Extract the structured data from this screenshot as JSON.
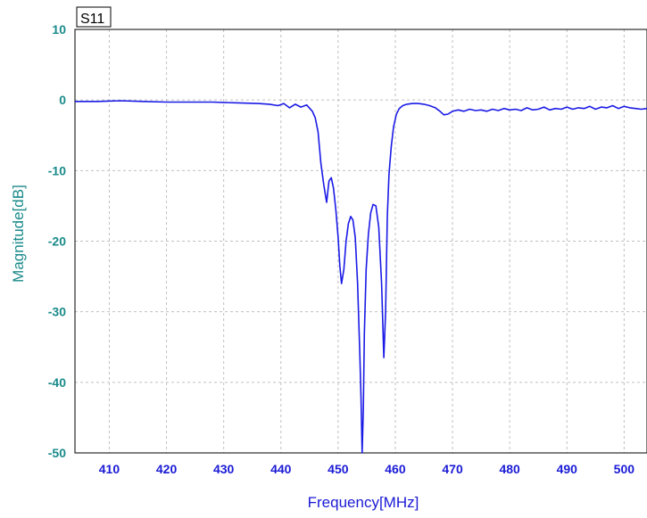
{
  "chart_data": {
    "type": "line",
    "legend": "S11",
    "xlabel": "Frequency[MHz]",
    "ylabel": "Magnitude[dB]",
    "xlim": [
      404,
      504
    ],
    "ylim": [
      -50,
      10
    ],
    "x_ticks": [
      410,
      420,
      430,
      440,
      450,
      460,
      470,
      480,
      490,
      500
    ],
    "y_ticks": [
      10,
      0,
      -10,
      -20,
      -30,
      -40,
      -50
    ],
    "grid": true,
    "colors": {
      "line": "#1a1ae6",
      "y_axis_text": "#1a8a8a",
      "x_axis_text": "#1a1ad6",
      "grid": "#c0c0c0"
    },
    "series": [
      {
        "name": "S11",
        "x": [
          404,
          408,
          412,
          416,
          420,
          424,
          428,
          432,
          436,
          438,
          439.5,
          440.5,
          441.5,
          442.5,
          443.5,
          444.5,
          445.5,
          446,
          446.5,
          447,
          447.5,
          448,
          448.4,
          448.8,
          449.2,
          449.6,
          450,
          450.3,
          450.6,
          451,
          451.4,
          451.8,
          452.2,
          452.6,
          453,
          453.4,
          453.8,
          454,
          454.2,
          454.4,
          454.6,
          454.9,
          455.3,
          455.7,
          456.1,
          456.6,
          457.1,
          457.6,
          458,
          458.3,
          458.6,
          458.9,
          459.3,
          459.7,
          460.2,
          460.7,
          461.3,
          462,
          463,
          464,
          465,
          466,
          467,
          467.8,
          468.5,
          469.2,
          470,
          471,
          472,
          473,
          474,
          475,
          476,
          477,
          478,
          479,
          480,
          481,
          482,
          483,
          484,
          485,
          486,
          487,
          488,
          489,
          490,
          491,
          492,
          493,
          494,
          495,
          496,
          497,
          498,
          499,
          500,
          501,
          502,
          503,
          504
        ],
        "y": [
          -0.2,
          -0.2,
          -0.1,
          -0.2,
          -0.3,
          -0.3,
          -0.3,
          -0.4,
          -0.5,
          -0.6,
          -0.8,
          -0.5,
          -1.1,
          -0.6,
          -1.0,
          -0.7,
          -1.6,
          -2.5,
          -4.5,
          -9.0,
          -12.0,
          -14.5,
          -11.5,
          -11.0,
          -12.5,
          -15.5,
          -19.5,
          -23.5,
          -26.0,
          -24.0,
          -20.0,
          -17.5,
          -16.5,
          -17.0,
          -19.5,
          -26.0,
          -36.0,
          -42.0,
          -50.0,
          -44.0,
          -33.0,
          -24.0,
          -19.0,
          -16.0,
          -14.8,
          -15.0,
          -18.0,
          -26.0,
          -36.5,
          -30.0,
          -16.5,
          -10.5,
          -6.5,
          -3.8,
          -2.0,
          -1.2,
          -0.8,
          -0.6,
          -0.5,
          -0.5,
          -0.6,
          -0.8,
          -1.1,
          -1.6,
          -2.1,
          -2.0,
          -1.6,
          -1.4,
          -1.6,
          -1.3,
          -1.5,
          -1.4,
          -1.6,
          -1.3,
          -1.5,
          -1.2,
          -1.4,
          -1.3,
          -1.5,
          -1.1,
          -1.4,
          -1.3,
          -1.0,
          -1.4,
          -1.2,
          -1.3,
          -1.0,
          -1.3,
          -1.1,
          -1.2,
          -0.9,
          -1.3,
          -1.0,
          -1.1,
          -0.8,
          -1.2,
          -0.9,
          -1.1,
          -1.2,
          -1.3,
          -1.2
        ]
      }
    ]
  }
}
